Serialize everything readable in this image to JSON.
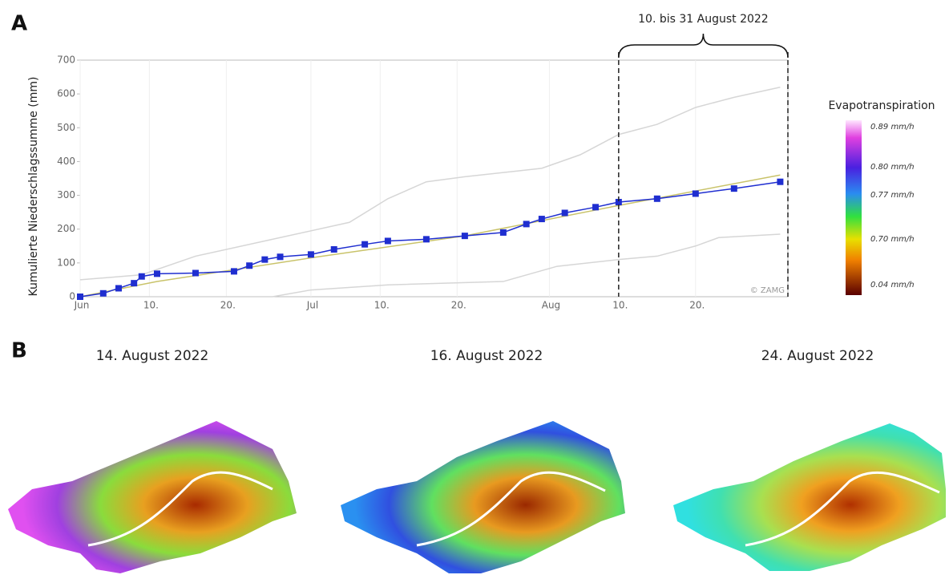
{
  "panel_labels": [
    "A",
    "B"
  ],
  "chart_data": {
    "type": "line",
    "ylabel": "Kumulierte Niederschlagssumme (mm)",
    "xlim": [
      0,
      92
    ],
    "ylim": [
      0,
      700
    ],
    "yticks": [
      0,
      100,
      200,
      300,
      400,
      500,
      600,
      700
    ],
    "xticks": [
      {
        "value": 0,
        "label": "Jun"
      },
      {
        "value": 9,
        "label": "10."
      },
      {
        "value": 19,
        "label": "20."
      },
      {
        "value": 30,
        "label": "Jul"
      },
      {
        "value": 39,
        "label": "10."
      },
      {
        "value": 49,
        "label": "20."
      },
      {
        "value": 61,
        "label": "Aug"
      },
      {
        "value": 70,
        "label": "10."
      },
      {
        "value": 80,
        "label": "20."
      }
    ],
    "grid": true,
    "series": [
      {
        "color": "#d6d6d6",
        "x": [
          0,
          8,
          15,
          25,
          35,
          40,
          45,
          50,
          60,
          65,
          70,
          75,
          80,
          85,
          91
        ],
        "values": [
          50,
          65,
          120,
          170,
          220,
          290,
          340,
          355,
          380,
          420,
          480,
          510,
          560,
          590,
          620
        ]
      },
      {
        "color": "#d6d6d6",
        "x": [
          0,
          25,
          30,
          40,
          55,
          62,
          70,
          75,
          80,
          83,
          91
        ],
        "values": [
          0,
          0,
          20,
          35,
          45,
          90,
          110,
          120,
          150,
          175,
          185
        ]
      },
      {
        "color": "#c9c36a",
        "x": [
          0,
          10,
          30,
          50,
          70,
          91
        ],
        "values": [
          0,
          45,
          115,
          180,
          270,
          360
        ]
      },
      {
        "color": "#1f2ed0",
        "markers": true,
        "x": [
          0,
          3,
          5,
          7,
          8,
          10,
          15,
          20,
          22,
          24,
          26,
          30,
          33,
          37,
          40,
          45,
          50,
          55,
          58,
          60,
          63,
          67,
          70,
          75,
          80,
          85,
          91
        ],
        "values": [
          0,
          10,
          25,
          40,
          60,
          68,
          70,
          75,
          92,
          110,
          118,
          125,
          140,
          155,
          165,
          170,
          180,
          190,
          215,
          230,
          248,
          265,
          280,
          290,
          305,
          320,
          340
        ]
      }
    ],
    "highlight": {
      "x": [
        70,
        92
      ],
      "label": "10. bis 31 August 2022"
    },
    "credit": "© ZAMG",
    "colorbar": {
      "title": "Evapotranspiration",
      "labels": [
        "0.89 mm/h",
        "0.80 mm/h",
        "0.77 mm/h",
        "0.70 mm/h",
        "0.04 mm/h"
      ]
    }
  },
  "maps": [
    {
      "title": "14. August 2022"
    },
    {
      "title": "16. August 2022"
    },
    {
      "title": "24. August 2022"
    }
  ]
}
